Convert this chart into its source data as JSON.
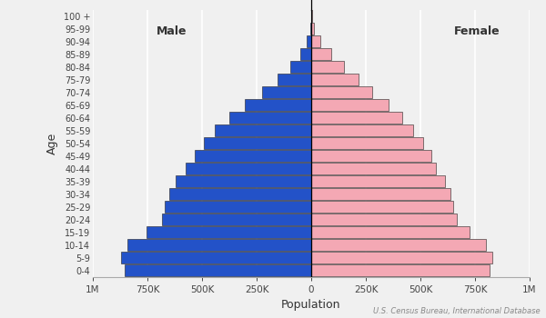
{
  "xlabel": "Population",
  "ylabel": "Age",
  "source": "U.S. Census Bureau, International Database",
  "age_groups": [
    "0-4",
    "5-9",
    "10-14",
    "15-19",
    "20-24",
    "25-29",
    "30-34",
    "35-39",
    "40-44",
    "45-49",
    "50-54",
    "55-59",
    "60-64",
    "65-69",
    "70-74",
    "75-79",
    "80-84",
    "85-89",
    "90-94",
    "95-99",
    "100 +"
  ],
  "male": [
    855000,
    870000,
    840000,
    755000,
    685000,
    670000,
    650000,
    620000,
    575000,
    535000,
    490000,
    440000,
    375000,
    305000,
    225000,
    155000,
    95000,
    50000,
    20000,
    6000,
    1200
  ],
  "female": [
    815000,
    830000,
    800000,
    725000,
    665000,
    652000,
    638000,
    612000,
    572000,
    548000,
    512000,
    468000,
    418000,
    355000,
    278000,
    215000,
    150000,
    90000,
    40000,
    14000,
    3500
  ],
  "male_color": "#2352c8",
  "female_color": "#f4a8b4",
  "bar_edge_color": "#222222",
  "background_color": "#f0f0f0",
  "male_label": "Male",
  "female_label": "Female",
  "xlim": 1000000,
  "xtick_vals": [
    -1000000,
    -750000,
    -500000,
    -250000,
    0,
    250000,
    500000,
    750000,
    1000000
  ],
  "xtick_labels": [
    "1M",
    "750K",
    "500K",
    "250K",
    "0",
    "250K",
    "500K",
    "750K",
    "1M"
  ]
}
